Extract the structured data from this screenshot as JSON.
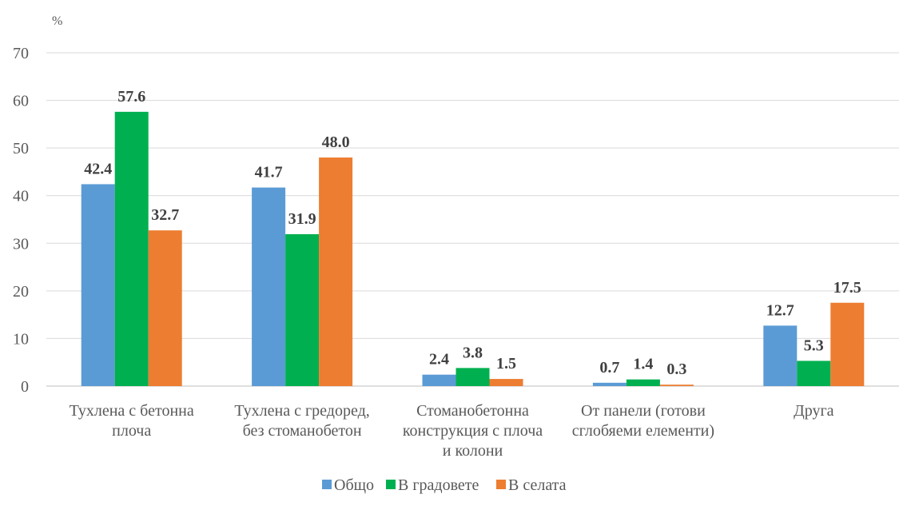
{
  "chart_data": {
    "type": "bar",
    "title": "",
    "ylabel": "%",
    "xlabel": "",
    "ylim": [
      0,
      70
    ],
    "yticks": [
      0,
      10,
      20,
      30,
      40,
      50,
      60,
      70
    ],
    "grid": true,
    "legend_position": "bottom",
    "categories": [
      [
        "Тухлена с бетонна",
        "плоча"
      ],
      [
        "Тухлена с гредоред,",
        "без стоманобетон"
      ],
      [
        "Стоманобетонна",
        "конструкция с плоча",
        "и колони"
      ],
      [
        "От панели (готови",
        "сглобяеми елементи)"
      ],
      [
        "Друга"
      ]
    ],
    "series": [
      {
        "name": "Общо",
        "color": "#5B9BD5",
        "values": [
          42.4,
          41.7,
          2.4,
          0.7,
          12.7
        ],
        "labels": [
          "42.4",
          "41.7",
          "2.4",
          "0.7",
          "12.7"
        ]
      },
      {
        "name": "В градовете",
        "color": "#00B050",
        "values": [
          57.6,
          31.9,
          3.8,
          1.4,
          5.3
        ],
        "labels": [
          "57.6",
          "31.9",
          "3.8",
          "1.4",
          "5.3"
        ]
      },
      {
        "name": "В селата",
        "color": "#ED7D31",
        "values": [
          32.7,
          48.0,
          1.5,
          0.3,
          17.5
        ],
        "labels": [
          "32.7",
          "48.0",
          "1.5",
          "0.3",
          "17.5"
        ]
      }
    ]
  }
}
